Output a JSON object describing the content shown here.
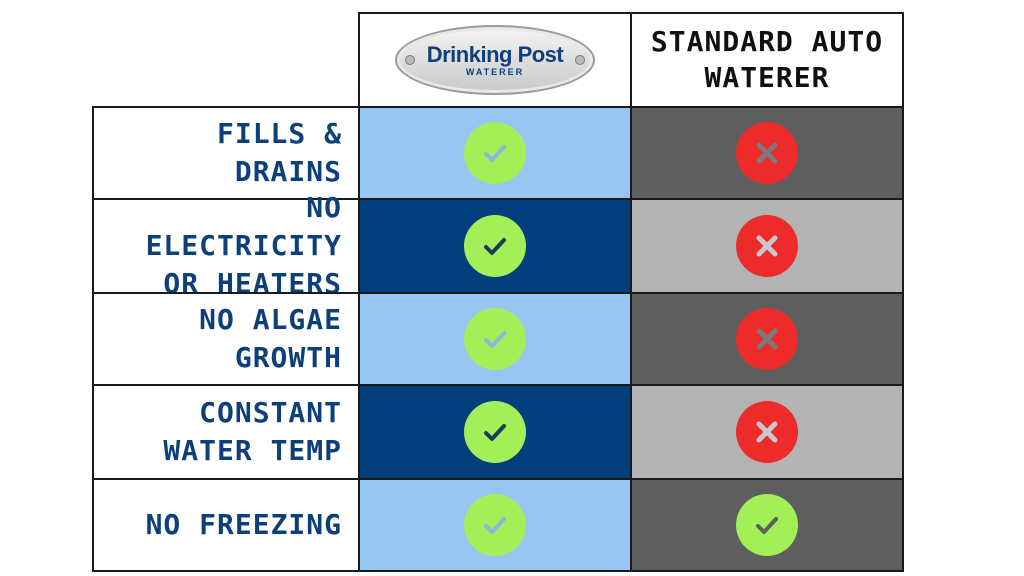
{
  "header": {
    "brand_line1": "Drinking Post",
    "brand_line2": "WATERER",
    "standard_title": "STANDARD AUTO\nWATERER"
  },
  "rows": [
    {
      "label": "FILLS & DRAINS",
      "drinking_post": "check",
      "standard": "x"
    },
    {
      "label": "NO ELECTRICITY\nOR HEATERS",
      "drinking_post": "check",
      "standard": "x"
    },
    {
      "label": "NO ALGAE\nGROWTH",
      "drinking_post": "check",
      "standard": "x"
    },
    {
      "label": "CONSTANT\nWATER TEMP",
      "drinking_post": "check",
      "standard": "x"
    },
    {
      "label": "NO FREEZING",
      "drinking_post": "check",
      "standard": "check"
    }
  ],
  "colors": {
    "label_text": "#0d3f7a",
    "dp_light": "#98c6f2",
    "dp_dark": "#033f7c",
    "std_dark": "#5e5e5e",
    "std_light": "#b3b3b3",
    "check_bg": "#a2ef58",
    "x_bg": "#ee2b2b"
  }
}
